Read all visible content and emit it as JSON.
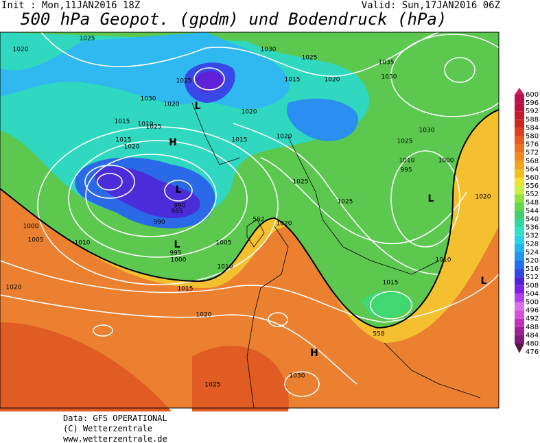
{
  "header": {
    "init": "Init : Mon,11JAN2016 18Z",
    "valid": "Valid: Sun,17JAN2016 06Z",
    "title": "500 hPa Geopot. (gpdm) und Bodendruck (hPa)"
  },
  "isobar_labels": [
    "1020",
    "1025",
    "1030",
    "1025",
    "1035",
    "1030",
    "1025",
    "1015",
    "1020",
    "1030",
    "1020",
    "1020",
    "1015",
    "1010",
    "1025",
    "1015",
    "1020",
    "1030",
    "1025",
    "1015",
    "1020",
    "1010",
    "1000",
    "995",
    "1025",
    "1025",
    "1020",
    "990",
    "985",
    "552",
    "1020",
    "990",
    "1000",
    "1005",
    "1010",
    "1005",
    "995",
    "1000",
    "1010",
    "1010",
    "1020",
    "1015",
    "1015",
    "1020",
    "558",
    "1030",
    "1025"
  ],
  "pressure_centers": [
    "H",
    "L",
    "L",
    "L",
    "L",
    "H",
    "L"
  ],
  "colorbar": {
    "levels": [
      600,
      596,
      592,
      588,
      584,
      580,
      576,
      572,
      568,
      564,
      560,
      556,
      552,
      548,
      544,
      540,
      536,
      532,
      528,
      524,
      520,
      516,
      512,
      508,
      504,
      500,
      496,
      492,
      488,
      484,
      480,
      476
    ],
    "colors": [
      "#c8205a",
      "#b81050",
      "#c01040",
      "#c81830",
      "#d02820",
      "#e04020",
      "#e85a20",
      "#f07020",
      "#f08a20",
      "#f0a420",
      "#f0c020",
      "#f0e030",
      "#c8f040",
      "#90e040",
      "#60d848",
      "#40d070",
      "#30d8a0",
      "#30e0c8",
      "#28d0e8",
      "#20b4f0",
      "#2094f0",
      "#2070f0",
      "#3048e0",
      "#5024d8",
      "#8020e0",
      "#b040f0",
      "#e070e8",
      "#d850d8",
      "#c030b8",
      "#a0209a",
      "#801a78",
      "#5a1448"
    ]
  },
  "footer": [
    "Data: GFS OPERATIONAL",
    "(C) Wetterzentrale",
    "www.wetterzentrale.de"
  ]
}
